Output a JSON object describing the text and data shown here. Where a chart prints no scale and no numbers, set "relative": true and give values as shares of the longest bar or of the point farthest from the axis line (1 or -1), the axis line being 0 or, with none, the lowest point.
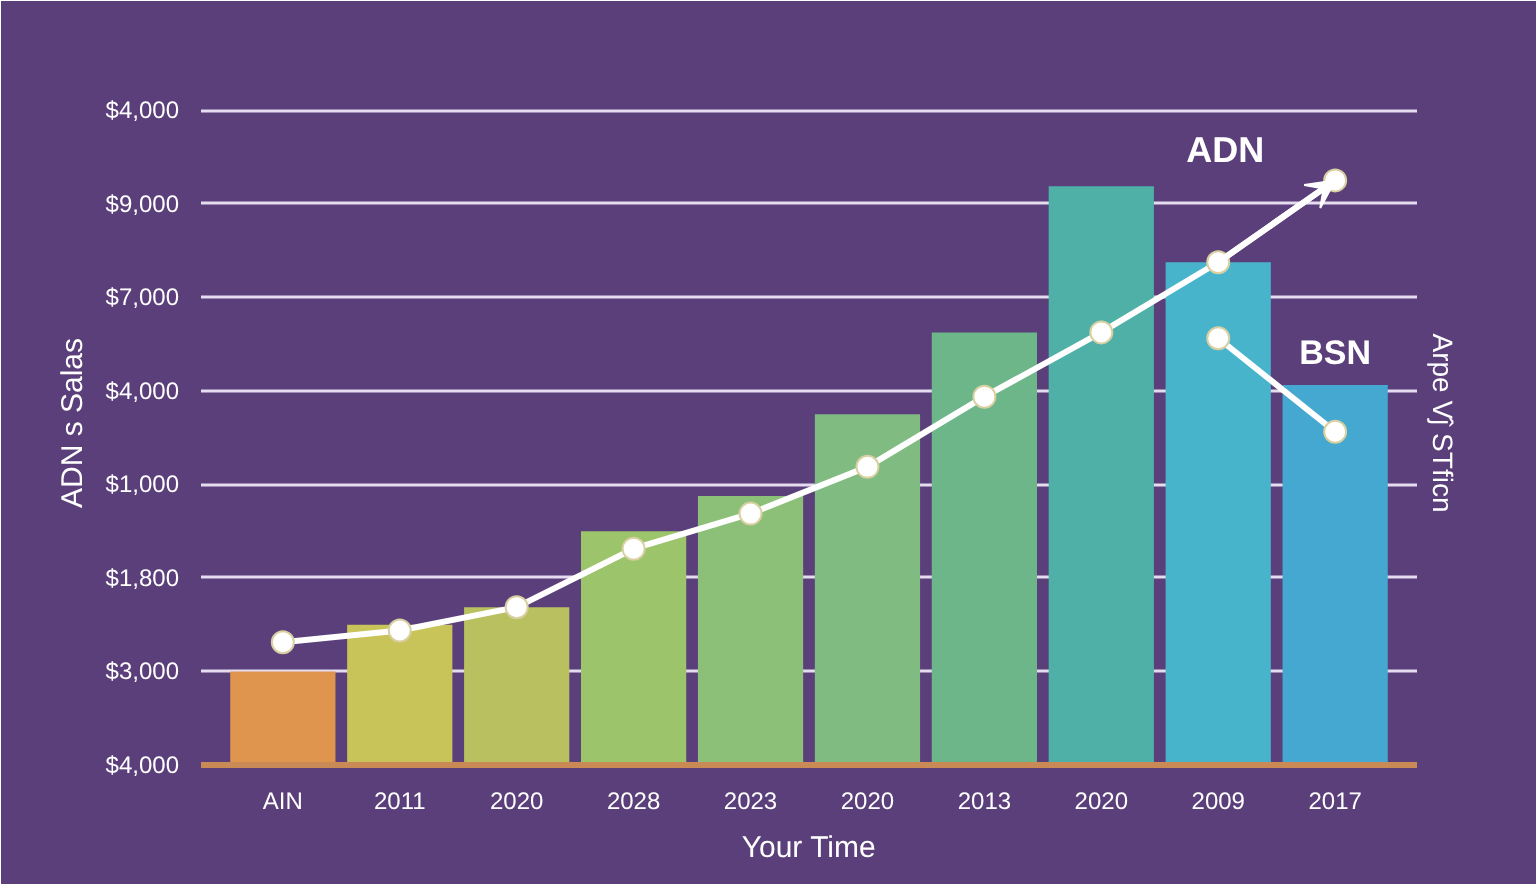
{
  "chart_data": {
    "type": "bar",
    "xlabel": "Your Time",
    "ylabel": "ADN s Salas",
    "y2label": "Arpe Vĵ STficn",
    "categories": [
      "AIN",
      "2011",
      "2020",
      "2028",
      "2023",
      "2020",
      "2013",
      "2020",
      "2009",
      "2017"
    ],
    "values": [
      0.16,
      0.24,
      0.27,
      0.4,
      0.46,
      0.6,
      0.74,
      0.99,
      0.86,
      0.65
    ],
    "colors": [
      "#e0954f",
      "#c8c45a",
      "#b8c060",
      "#9cc46a",
      "#8cc078",
      "#80bb82",
      "#6db68a",
      "#4fb0a8",
      "#48b4cc",
      "#45a8d0"
    ],
    "series": [
      {
        "name": "ADN",
        "type": "line",
        "color": "#ffffff",
        "values": [
          0.21,
          0.23,
          0.27,
          0.37,
          0.43,
          0.51,
          0.63,
          0.74,
          0.86,
          1
        ]
      },
      {
        "name": "BSN",
        "type": "line",
        "color": "#ffffff",
        "values": [
          null,
          null,
          null,
          null,
          null,
          null,
          null,
          null,
          0.73,
          0.57
        ]
      }
    ],
    "relative": true,
    "annotations": [
      "$4,000",
      "$9,000",
      "$7,000",
      "$4,000",
      "$1,000",
      "$1,800",
      "$3,000",
      "$4,000"
    ],
    "grid": "y",
    "marker": "circle",
    "line_style": "solid"
  }
}
